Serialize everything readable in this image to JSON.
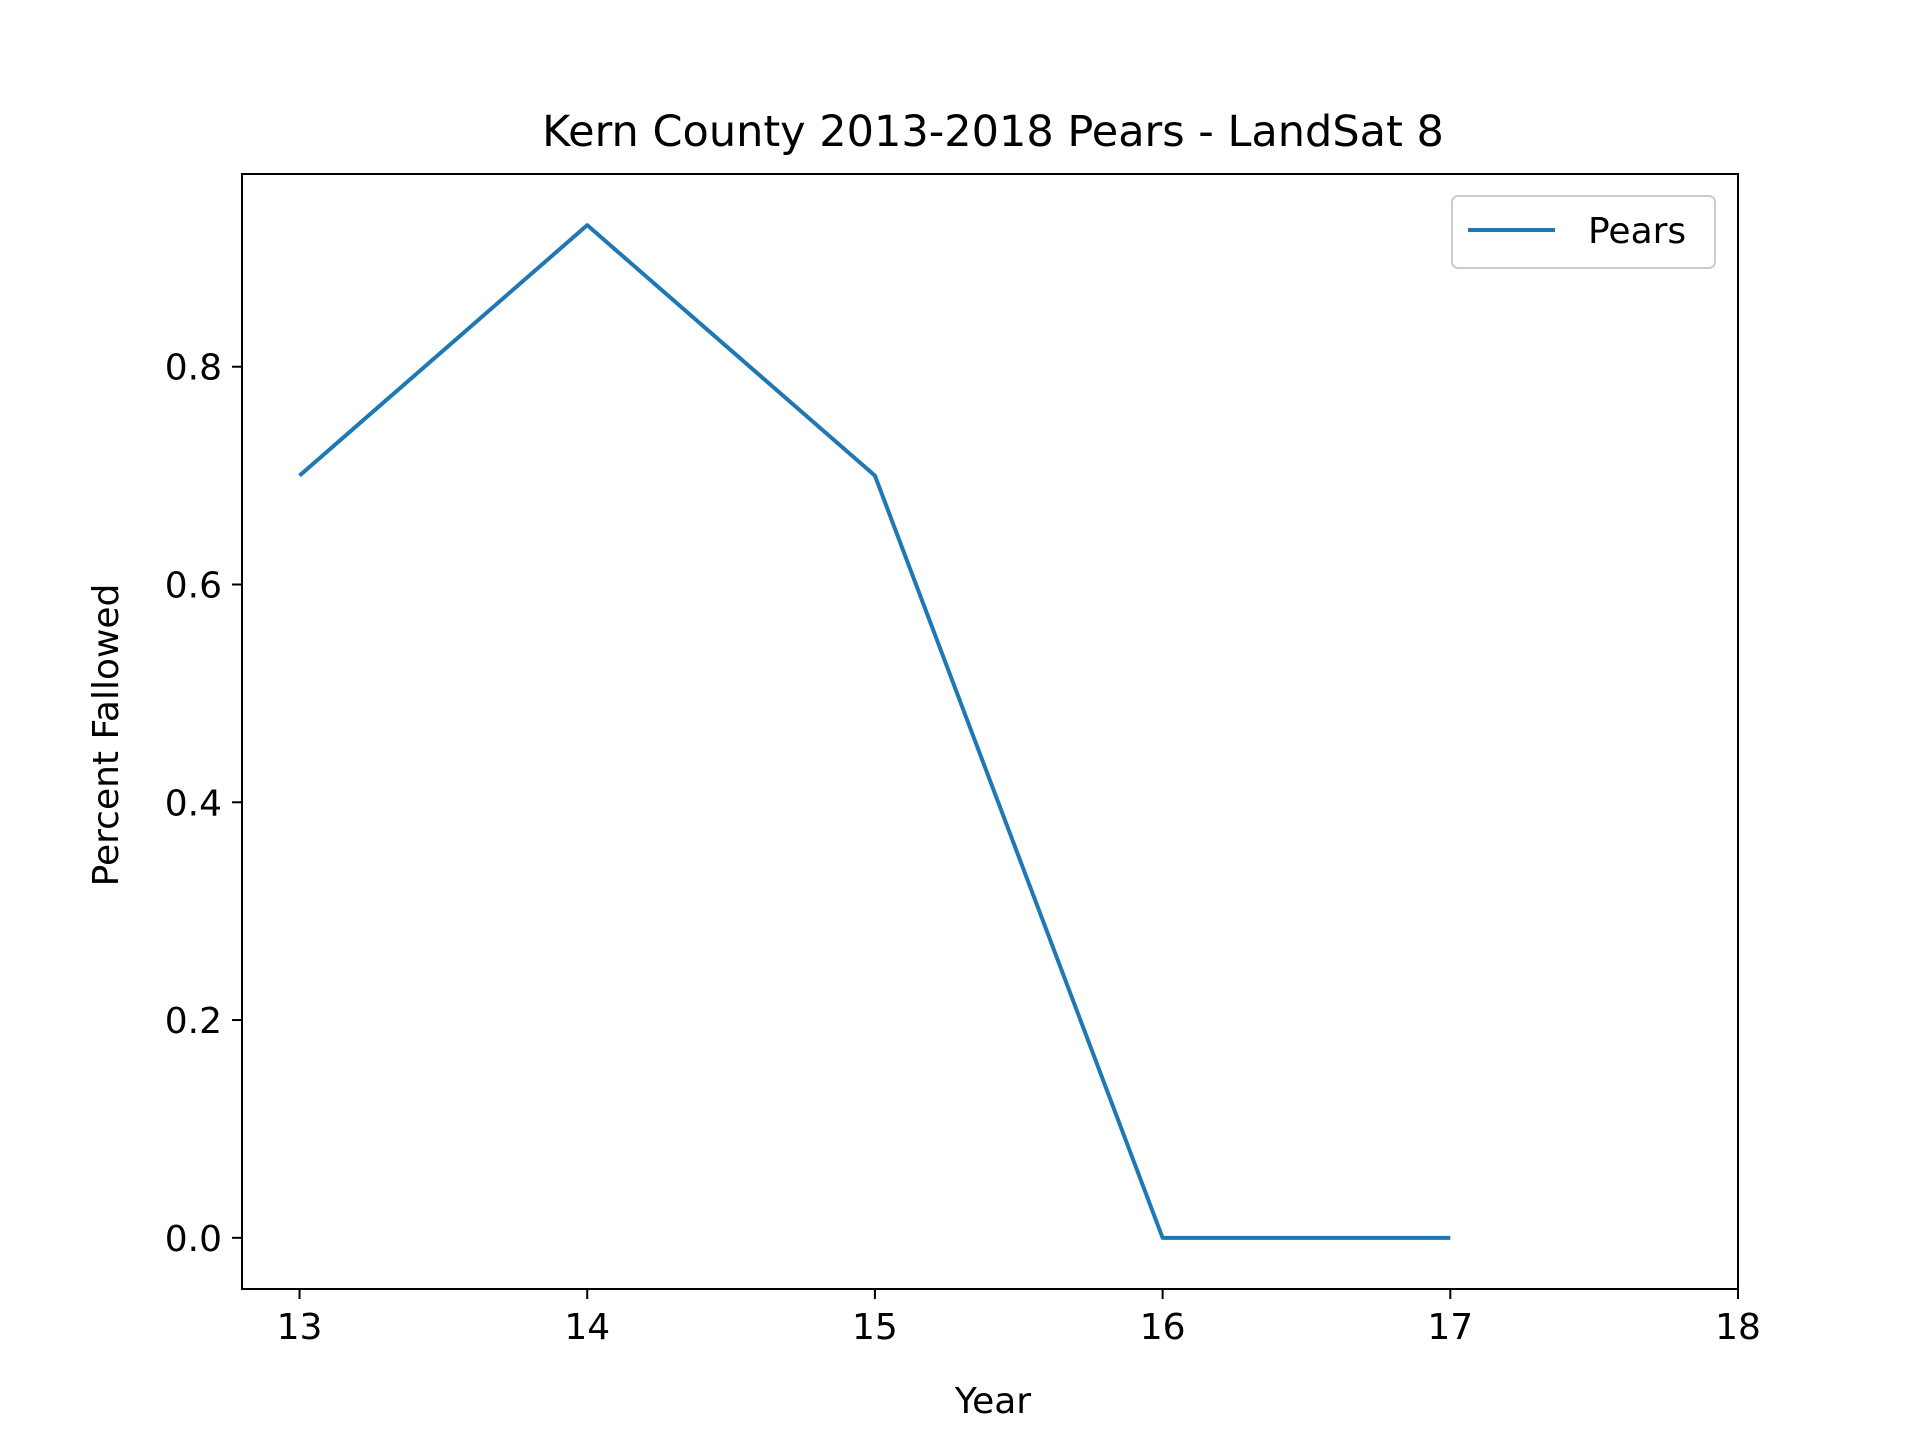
{
  "chart_data": {
    "type": "line",
    "title": "Kern County 2013-2018 Pears - LandSat 8",
    "xlabel": "Year",
    "ylabel": "Percent Fallowed",
    "x": [
      13,
      14,
      15,
      16,
      17
    ],
    "series": [
      {
        "name": "Pears",
        "color": "#1f77b4",
        "values": [
          0.7,
          0.93,
          0.7,
          0.0,
          0.0
        ]
      }
    ],
    "xlim": [
      12.8,
      18
    ],
    "ylim": [
      -0.047,
      0.977
    ],
    "xticks": [
      13,
      14,
      15,
      16,
      17,
      18
    ],
    "xtick_labels": [
      "13",
      "14",
      "15",
      "16",
      "17",
      "18"
    ],
    "yticks": [
      0.0,
      0.2,
      0.4,
      0.6,
      0.8
    ],
    "ytick_labels": [
      "0.0",
      "0.2",
      "0.4",
      "0.6",
      "0.8"
    ],
    "grid": false,
    "legend_position": "top-right"
  }
}
